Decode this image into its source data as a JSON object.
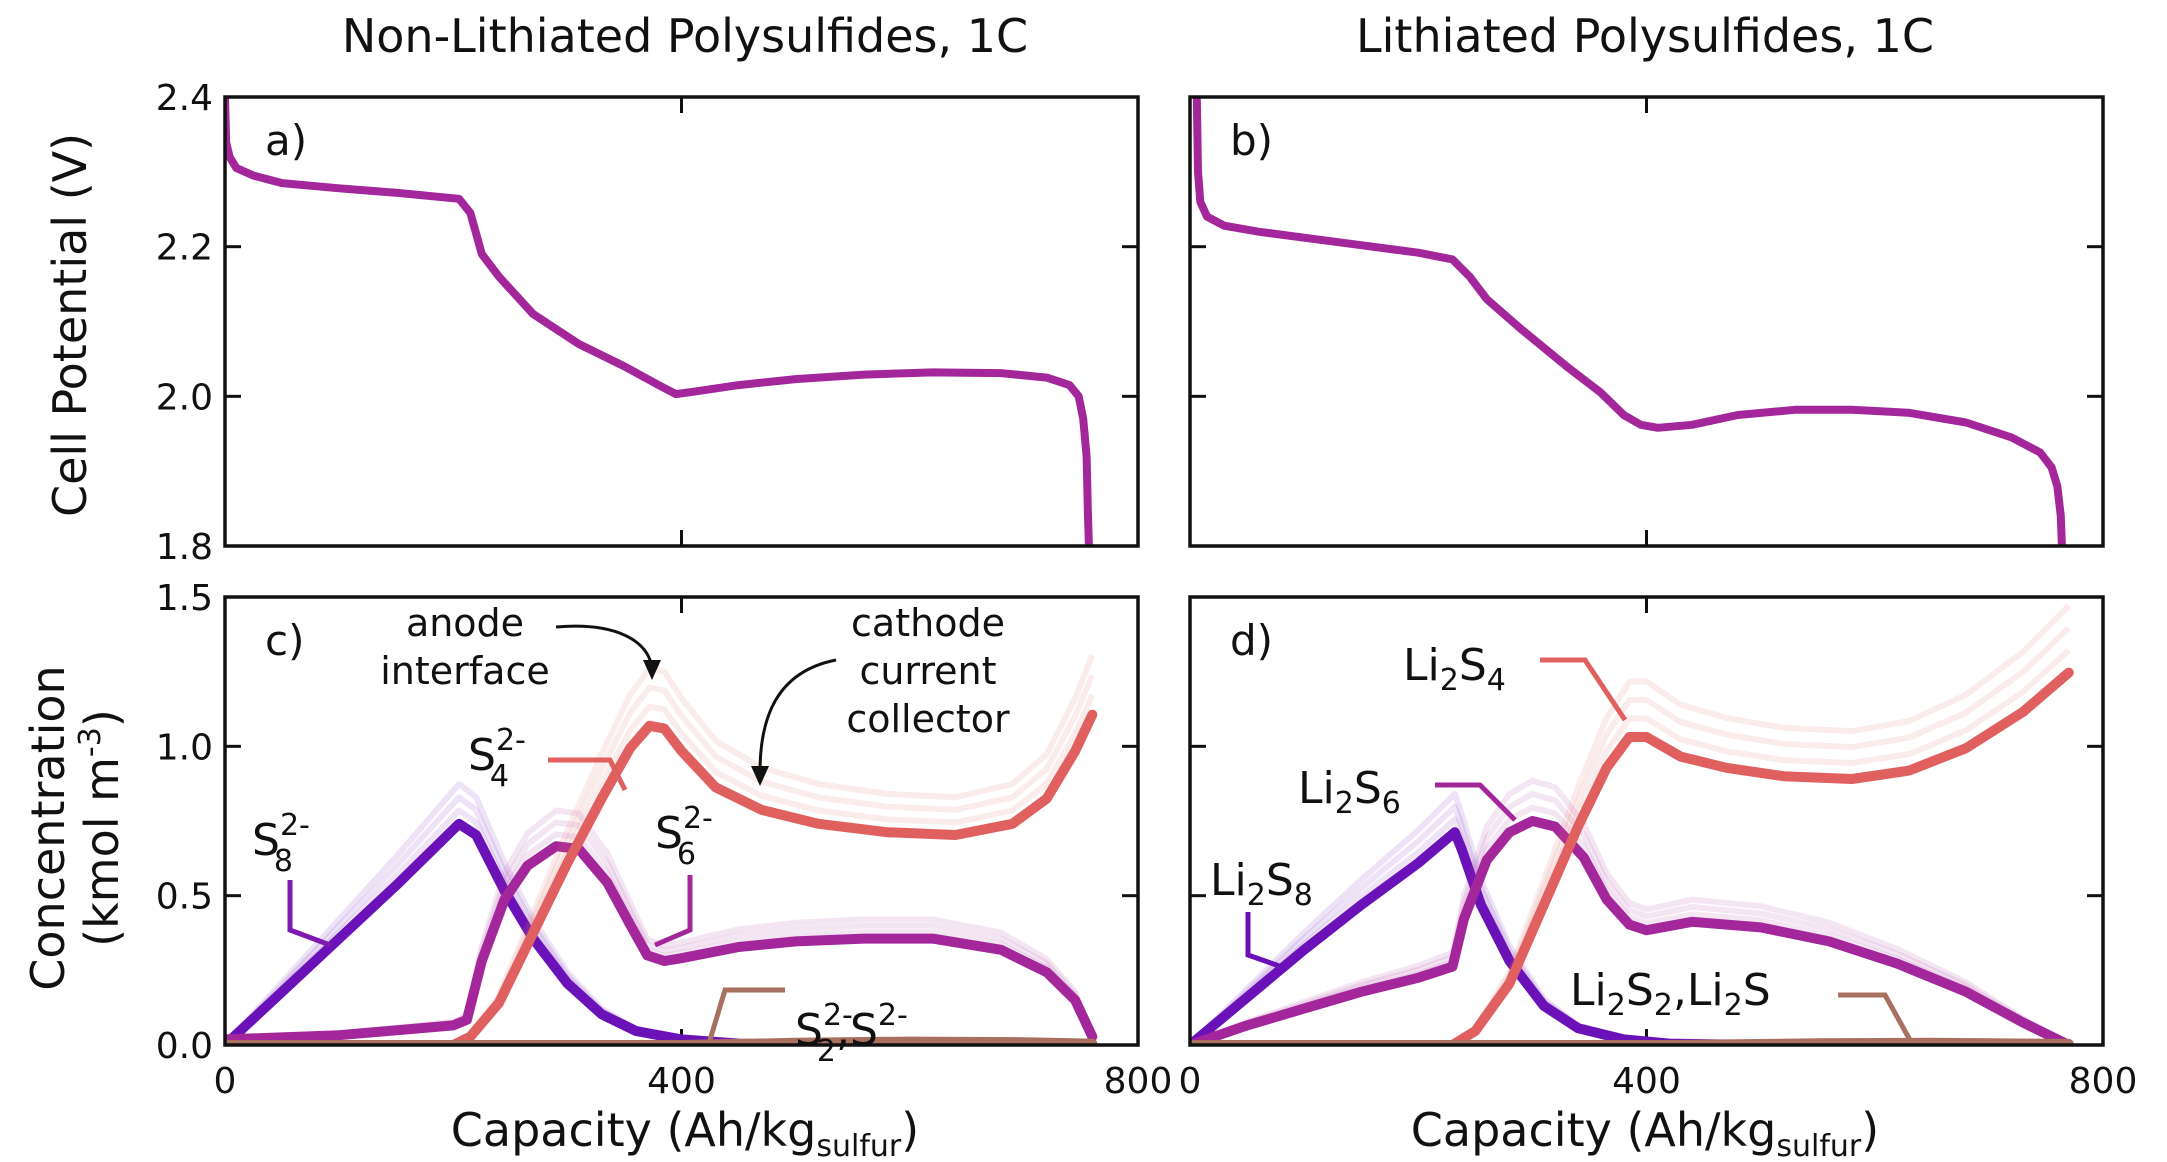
{
  "titles": {
    "left": "Non-Lithiated Polysulfides, 1C",
    "right": "Lithiated Polysulfides, 1C"
  },
  "axes": {
    "potential_ylabel": "Cell Potential (V)",
    "concentration_ylabel_line1": "Concentration",
    "concentration_ylabel_line2_prefix": "(kmol m",
    "concentration_ylabel_line2_sup": "-3",
    "concentration_ylabel_line2_suffix": ")",
    "xlabel_prefix": "Capacity (Ah/kg",
    "xlabel_sub": "sulfur",
    "xlabel_suffix": ")"
  },
  "colors": {
    "potential": "#a3279a",
    "s8": "#6a12b8",
    "s6": "#a3279a",
    "s4": "#e06060",
    "s2": "#a87060",
    "baseline_blue": "#1f1f9a",
    "baseline_gold": "#c8a030"
  },
  "chart_data": [
    {
      "panel": "a)",
      "type": "line",
      "xlim": [
        0,
        800
      ],
      "ylim": [
        1.8,
        2.4
      ],
      "yticks": [
        "1.8",
        "2.0",
        "2.2",
        "2.4"
      ],
      "xticks": [],
      "series": [
        {
          "values": [
            [
              0,
              2.4
            ],
            [
              1,
              2.34
            ],
            [
              4,
              2.32
            ],
            [
              10,
              2.305
            ],
            [
              25,
              2.295
            ],
            [
              50,
              2.285
            ],
            [
              100,
              2.278
            ],
            [
              150,
              2.272
            ],
            [
              205,
              2.264
            ],
            [
              215,
              2.245
            ],
            [
              225,
              2.19
            ],
            [
              240,
              2.16
            ],
            [
              270,
              2.11
            ],
            [
              310,
              2.07
            ],
            [
              350,
              2.04
            ],
            [
              380,
              2.015
            ],
            [
              395,
              2.003
            ],
            [
              410,
              2.006
            ],
            [
              450,
              2.015
            ],
            [
              500,
              2.023
            ],
            [
              560,
              2.029
            ],
            [
              620,
              2.032
            ],
            [
              680,
              2.031
            ],
            [
              720,
              2.025
            ],
            [
              740,
              2.015
            ],
            [
              748,
              2.0
            ],
            [
              752,
              1.97
            ],
            [
              755,
              1.92
            ],
            [
              756,
              1.85
            ],
            [
              757,
              1.8
            ]
          ]
        }
      ]
    },
    {
      "panel": "b)",
      "type": "line",
      "xlim": [
        0,
        800
      ],
      "ylim": [
        1.8,
        2.4
      ],
      "yticks": [],
      "xticks": [],
      "series": [
        {
          "values": [
            [
              6,
              2.4
            ],
            [
              7,
              2.3
            ],
            [
              9,
              2.26
            ],
            [
              15,
              2.24
            ],
            [
              30,
              2.228
            ],
            [
              60,
              2.22
            ],
            [
              100,
              2.212
            ],
            [
              150,
              2.202
            ],
            [
              200,
              2.192
            ],
            [
              230,
              2.183
            ],
            [
              245,
              2.16
            ],
            [
              260,
              2.13
            ],
            [
              290,
              2.09
            ],
            [
              330,
              2.04
            ],
            [
              360,
              2.005
            ],
            [
              380,
              1.975
            ],
            [
              395,
              1.962
            ],
            [
              410,
              1.958
            ],
            [
              440,
              1.962
            ],
            [
              480,
              1.975
            ],
            [
              530,
              1.982
            ],
            [
              580,
              1.982
            ],
            [
              630,
              1.978
            ],
            [
              680,
              1.965
            ],
            [
              720,
              1.945
            ],
            [
              745,
              1.925
            ],
            [
              755,
              1.905
            ],
            [
              760,
              1.88
            ],
            [
              763,
              1.84
            ],
            [
              764,
              1.8
            ]
          ]
        }
      ]
    },
    {
      "panel": "c)",
      "type": "line",
      "xlim": [
        0,
        800
      ],
      "ylim": [
        0.0,
        1.6
      ],
      "yticks": [
        "0.0",
        "0.5",
        "1.0",
        "1.5"
      ],
      "xticks": [
        "0",
        "400",
        "800"
      ],
      "annotations": [
        {
          "text_line1": "anode",
          "text_line2": "interface",
          "x": 385,
          "y": 1.33
        },
        {
          "text_line1": "cathode",
          "text_line2": "current",
          "text_line3": "collector",
          "x": 480,
          "y": 0.88
        }
      ],
      "series": [
        {
          "name": "S",
          "sub": "8",
          "sup": "2-",
          "values": [
            [
              0,
              0.0
            ],
            [
              50,
              0.19
            ],
            [
              100,
              0.38
            ],
            [
              150,
              0.57
            ],
            [
              205,
              0.79
            ],
            [
              220,
              0.75
            ],
            [
              245,
              0.55
            ],
            [
              270,
              0.38
            ],
            [
              300,
              0.22
            ],
            [
              330,
              0.11
            ],
            [
              360,
              0.05
            ],
            [
              400,
              0.02
            ],
            [
              450,
              0.005
            ],
            [
              500,
              0.0
            ],
            [
              760,
              0.0
            ]
          ]
        },
        {
          "name": "S",
          "sub": "6",
          "sup": "2-",
          "values": [
            [
              0,
              0.02
            ],
            [
              100,
              0.035
            ],
            [
              200,
              0.07
            ],
            [
              212,
              0.09
            ],
            [
              225,
              0.3
            ],
            [
              245,
              0.52
            ],
            [
              265,
              0.64
            ],
            [
              290,
              0.71
            ],
            [
              310,
              0.7
            ],
            [
              335,
              0.58
            ],
            [
              355,
              0.43
            ],
            [
              370,
              0.32
            ],
            [
              385,
              0.3
            ],
            [
              400,
              0.31
            ],
            [
              450,
              0.35
            ],
            [
              500,
              0.37
            ],
            [
              560,
              0.38
            ],
            [
              620,
              0.38
            ],
            [
              680,
              0.34
            ],
            [
              720,
              0.26
            ],
            [
              745,
              0.16
            ],
            [
              760,
              0.03
            ]
          ]
        },
        {
          "name": "S",
          "sub": "4",
          "sup": "2-",
          "values": [
            [
              0,
              0.0
            ],
            [
              200,
              0.0
            ],
            [
              215,
              0.03
            ],
            [
              240,
              0.15
            ],
            [
              270,
              0.4
            ],
            [
              300,
              0.65
            ],
            [
              330,
              0.88
            ],
            [
              355,
              1.06
            ],
            [
              372,
              1.14
            ],
            [
              385,
              1.13
            ],
            [
              400,
              1.05
            ],
            [
              430,
              0.92
            ],
            [
              470,
              0.84
            ],
            [
              520,
              0.79
            ],
            [
              580,
              0.76
            ],
            [
              640,
              0.75
            ],
            [
              690,
              0.79
            ],
            [
              720,
              0.88
            ],
            [
              745,
              1.05
            ],
            [
              760,
              1.18
            ]
          ]
        },
        {
          "name": "S",
          "sub": "2",
          "sup": "2-",
          "name2": "S",
          "sup2": "2-",
          "values": [
            [
              0,
              0.0
            ],
            [
              400,
              0.0
            ],
            [
              500,
              0.008
            ],
            [
              600,
              0.012
            ],
            [
              700,
              0.01
            ],
            [
              760,
              0.005
            ]
          ]
        }
      ]
    },
    {
      "panel": "d)",
      "type": "line",
      "xlim": [
        0,
        800
      ],
      "ylim": [
        0.0,
        1.6
      ],
      "yticks": [],
      "xticks": [
        "0",
        "400",
        "800"
      ],
      "series": [
        {
          "name": "Li",
          "sub": "2",
          "name_b": "S",
          "sub_b": "8",
          "values": [
            [
              0,
              0.0
            ],
            [
              50,
              0.17
            ],
            [
              100,
              0.34
            ],
            [
              150,
              0.5
            ],
            [
              200,
              0.65
            ],
            [
              232,
              0.76
            ],
            [
              238,
              0.7
            ],
            [
              255,
              0.5
            ],
            [
              280,
              0.3
            ],
            [
              310,
              0.14
            ],
            [
              340,
              0.06
            ],
            [
              380,
              0.02
            ],
            [
              420,
              0.005
            ],
            [
              500,
              0.0
            ],
            [
              770,
              0.0
            ]
          ]
        },
        {
          "name": "Li",
          "sub": "2",
          "name_b": "S",
          "sub_b": "6",
          "values": [
            [
              0,
              0.0
            ],
            [
              50,
              0.07
            ],
            [
              100,
              0.13
            ],
            [
              150,
              0.19
            ],
            [
              200,
              0.24
            ],
            [
              230,
              0.28
            ],
            [
              240,
              0.45
            ],
            [
              260,
              0.66
            ],
            [
              280,
              0.76
            ],
            [
              300,
              0.8
            ],
            [
              320,
              0.78
            ],
            [
              345,
              0.67
            ],
            [
              365,
              0.52
            ],
            [
              385,
              0.43
            ],
            [
              400,
              0.41
            ],
            [
              440,
              0.44
            ],
            [
              500,
              0.42
            ],
            [
              560,
              0.37
            ],
            [
              620,
              0.29
            ],
            [
              680,
              0.19
            ],
            [
              730,
              0.08
            ],
            [
              770,
              0.0
            ]
          ]
        },
        {
          "name": "Li",
          "sub": "2",
          "name_b": "S",
          "sub_b": "4",
          "values": [
            [
              0,
              0.0
            ],
            [
              230,
              0.0
            ],
            [
              250,
              0.05
            ],
            [
              280,
              0.22
            ],
            [
              310,
              0.5
            ],
            [
              340,
              0.78
            ],
            [
              365,
              0.99
            ],
            [
              385,
              1.1
            ],
            [
              400,
              1.1
            ],
            [
              430,
              1.03
            ],
            [
              470,
              0.99
            ],
            [
              520,
              0.96
            ],
            [
              580,
              0.95
            ],
            [
              630,
              0.98
            ],
            [
              680,
              1.06
            ],
            [
              730,
              1.19
            ],
            [
              770,
              1.33
            ]
          ]
        },
        {
          "name": "Li",
          "sub": "2",
          "name_b": "S",
          "sub_b": "2",
          "sep": ",",
          "name2": "Li",
          "sub2": "2",
          "name2_b": "S",
          "values": [
            [
              0,
              0.0
            ],
            [
              420,
              0.0
            ],
            [
              550,
              0.006
            ],
            [
              650,
              0.008
            ],
            [
              770,
              0.004
            ]
          ]
        }
      ]
    }
  ]
}
